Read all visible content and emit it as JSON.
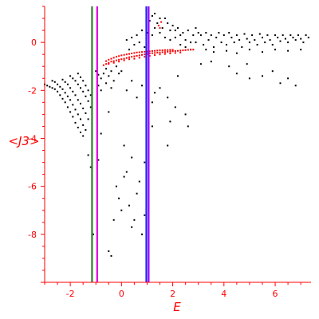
{
  "chart_data": {
    "type": "scatter",
    "xlabel": "E",
    "ylabel": "<J3>",
    "xlim": [
      -3,
      7.4
    ],
    "ylim": [
      -10,
      1.5
    ],
    "x_ticks": [
      -2,
      0,
      2,
      4,
      6
    ],
    "y_ticks": [
      0,
      -2,
      -4,
      -6,
      -8
    ],
    "x_tick_labels": [
      "-2",
      "0",
      "2",
      "4",
      "6"
    ],
    "y_tick_labels": [
      "0",
      "-2",
      "-4",
      "-6",
      "-8"
    ],
    "grid": false,
    "colors": {
      "axes": "#ff0000",
      "black_points": "#000000",
      "red_points": "#ff0000",
      "line_green": "#2e7d32",
      "line_magenta": "#e000e0",
      "line_blue": "#2020ff",
      "line_purple": "#9900ff"
    },
    "vertical_lines": [
      {
        "x": -1.15,
        "color": "#2e7d32"
      },
      {
        "x": -0.95,
        "color": "#e000e0"
      },
      {
        "x": 0.97,
        "color": "#2020ff"
      },
      {
        "x": 1.06,
        "color": "#9900ff"
      }
    ],
    "series": [
      {
        "color": "#000000",
        "points": [
          [
            -3.0,
            -1.75
          ],
          [
            -2.9,
            -1.8
          ],
          [
            -2.8,
            -1.85
          ],
          [
            -2.7,
            -1.9
          ],
          [
            -2.6,
            -1.95
          ],
          [
            -2.5,
            -2.05
          ],
          [
            -2.4,
            -2.2
          ],
          [
            -2.3,
            -2.35
          ],
          [
            -2.2,
            -2.5
          ],
          [
            -2.1,
            -2.7
          ],
          [
            -2.0,
            -2.9
          ],
          [
            -1.9,
            -3.1
          ],
          [
            -1.8,
            -3.35
          ],
          [
            -1.7,
            -3.55
          ],
          [
            -1.6,
            -3.75
          ],
          [
            -1.5,
            -3.9
          ],
          [
            -2.7,
            -1.6
          ],
          [
            -2.6,
            -1.65
          ],
          [
            -2.5,
            -1.75
          ],
          [
            -2.4,
            -1.85
          ],
          [
            -2.3,
            -1.95
          ],
          [
            -2.2,
            -2.1
          ],
          [
            -2.1,
            -2.25
          ],
          [
            -2.0,
            -2.4
          ],
          [
            -1.9,
            -2.6
          ],
          [
            -1.8,
            -2.8
          ],
          [
            -1.7,
            -3.0
          ],
          [
            -1.6,
            -3.2
          ],
          [
            -1.5,
            -3.45
          ],
          [
            -1.4,
            -3.65
          ],
          [
            -2.3,
            -1.55
          ],
          [
            -2.2,
            -1.65
          ],
          [
            -2.1,
            -1.75
          ],
          [
            -2.0,
            -1.9
          ],
          [
            -1.9,
            -2.05
          ],
          [
            -1.8,
            -2.2
          ],
          [
            -1.7,
            -2.4
          ],
          [
            -1.6,
            -2.55
          ],
          [
            -1.5,
            -2.75
          ],
          [
            -1.4,
            -2.95
          ],
          [
            -1.3,
            -3.2
          ],
          [
            -2.0,
            -1.4
          ],
          [
            -1.9,
            -1.5
          ],
          [
            -1.8,
            -1.6
          ],
          [
            -1.7,
            -1.75
          ],
          [
            -1.6,
            -1.9
          ],
          [
            -1.5,
            -2.05
          ],
          [
            -1.4,
            -2.25
          ],
          [
            -1.3,
            -2.45
          ],
          [
            -1.2,
            -2.7
          ],
          [
            -1.7,
            -1.3
          ],
          [
            -1.6,
            -1.45
          ],
          [
            -1.5,
            -1.6
          ],
          [
            -1.4,
            -1.8
          ],
          [
            -1.3,
            -2.0
          ],
          [
            -1.2,
            -2.2
          ],
          [
            -1.0,
            -1.2
          ],
          [
            -0.9,
            -1.35
          ],
          [
            -0.8,
            -1.5
          ],
          [
            -0.7,
            -1.3
          ],
          [
            -0.6,
            -1.1
          ],
          [
            -0.5,
            -1.4
          ],
          [
            -0.4,
            -1.2
          ],
          [
            -0.3,
            -1.6
          ],
          [
            -0.2,
            -1.0
          ],
          [
            -0.1,
            -1.3
          ],
          [
            0.0,
            -1.2
          ],
          [
            -0.9,
            -1.8
          ],
          [
            -0.8,
            -2.0
          ],
          [
            -0.6,
            -1.7
          ],
          [
            -0.4,
            -1.9
          ],
          [
            0.2,
            0.1
          ],
          [
            0.3,
            -0.3
          ],
          [
            0.4,
            0.2
          ],
          [
            0.5,
            -0.1
          ],
          [
            0.6,
            0.3
          ],
          [
            0.7,
            0.0
          ],
          [
            0.8,
            0.5
          ],
          [
            0.9,
            -0.2
          ],
          [
            1.0,
            0.4
          ],
          [
            1.1,
            0.9
          ],
          [
            1.2,
            1.1
          ],
          [
            1.3,
            1.2
          ],
          [
            1.4,
            0.8
          ],
          [
            1.5,
            1.0
          ],
          [
            1.6,
            0.6
          ],
          [
            1.7,
            1.0
          ],
          [
            1.8,
            0.8
          ],
          [
            1.9,
            0.5
          ],
          [
            2.0,
            0.7
          ],
          [
            2.1,
            0.2
          ],
          [
            2.2,
            0.6
          ],
          [
            2.3,
            -0.1
          ],
          [
            2.4,
            0.4
          ],
          [
            2.5,
            0.1
          ],
          [
            2.6,
            0.5
          ],
          [
            2.7,
            -0.3
          ],
          [
            2.8,
            0.3
          ],
          [
            2.9,
            0.0
          ],
          [
            3.0,
            0.4
          ],
          [
            1.2,
            0.3
          ],
          [
            1.3,
            0.6
          ],
          [
            1.5,
            0.4
          ],
          [
            1.7,
            0.2
          ],
          [
            1.9,
            0.1
          ],
          [
            2.1,
            0.5
          ],
          [
            2.3,
            0.3
          ],
          [
            2.5,
            -0.2
          ],
          [
            2.7,
            0.0
          ],
          [
            2.9,
            0.6
          ],
          [
            3.1,
            0.3
          ],
          [
            3.2,
            -0.1
          ],
          [
            3.3,
            0.4
          ],
          [
            3.4,
            0.1
          ],
          [
            3.5,
            0.3
          ],
          [
            3.6,
            -0.2
          ],
          [
            3.7,
            0.2
          ],
          [
            3.8,
            0.4
          ],
          [
            3.9,
            0.0
          ],
          [
            4.0,
            0.3
          ],
          [
            4.1,
            -0.1
          ],
          [
            4.2,
            0.4
          ],
          [
            4.3,
            0.2
          ],
          [
            4.4,
            0.0
          ],
          [
            4.5,
            0.3
          ],
          [
            4.6,
            0.1
          ],
          [
            4.7,
            -0.2
          ],
          [
            4.8,
            0.35
          ],
          [
            4.9,
            0.15
          ],
          [
            5.0,
            0.0
          ],
          [
            5.1,
            0.3
          ],
          [
            5.2,
            0.1
          ],
          [
            5.3,
            -0.1
          ],
          [
            5.4,
            0.35
          ],
          [
            5.5,
            0.2
          ],
          [
            5.6,
            0.0
          ],
          [
            5.7,
            0.3
          ],
          [
            5.8,
            0.1
          ],
          [
            5.9,
            -0.1
          ],
          [
            6.0,
            0.3
          ],
          [
            6.1,
            0.2
          ],
          [
            6.2,
            0.05
          ],
          [
            6.3,
            0.3
          ],
          [
            6.4,
            0.15
          ],
          [
            6.5,
            0.0
          ],
          [
            6.6,
            0.3
          ],
          [
            6.7,
            0.2
          ],
          [
            6.8,
            0.1
          ],
          [
            6.9,
            0.3
          ],
          [
            7.0,
            0.15
          ],
          [
            7.1,
            0.0
          ],
          [
            7.2,
            0.3
          ],
          [
            7.3,
            0.2
          ],
          [
            3.3,
            -0.3
          ],
          [
            3.6,
            -0.4
          ],
          [
            4.1,
            -0.35
          ],
          [
            4.5,
            -0.45
          ],
          [
            5.0,
            -0.3
          ],
          [
            5.5,
            -0.4
          ],
          [
            6.0,
            -0.3
          ],
          [
            6.5,
            -0.35
          ],
          [
            7.0,
            -0.3
          ],
          [
            4.5,
            -1.3
          ],
          [
            5.0,
            -1.5
          ],
          [
            5.5,
            -1.4
          ],
          [
            6.2,
            -1.7
          ],
          [
            6.8,
            -1.8
          ],
          [
            4.9,
            -0.9
          ],
          [
            5.9,
            -1.2
          ],
          [
            4.2,
            -1.0
          ],
          [
            3.5,
            -0.8
          ],
          [
            6.5,
            -1.5
          ],
          [
            3.1,
            -0.9
          ],
          [
            2.2,
            -1.4
          ],
          [
            0.2,
            -2.0
          ],
          [
            0.4,
            -1.6
          ],
          [
            0.6,
            -2.3
          ],
          [
            0.8,
            -1.8
          ],
          [
            1.2,
            -2.5
          ],
          [
            1.5,
            -1.9
          ],
          [
            1.8,
            -2.3
          ],
          [
            2.1,
            -2.7
          ],
          [
            2.5,
            -3.0
          ],
          [
            2.6,
            -3.5
          ],
          [
            1.9,
            -3.3
          ],
          [
            1.3,
            -2.1
          ],
          [
            -0.9,
            -4.9
          ],
          [
            -0.8,
            -3.8
          ],
          [
            -0.5,
            -2.9
          ],
          [
            0.1,
            -4.3
          ],
          [
            0.4,
            -4.8
          ],
          [
            0.9,
            -5.0
          ],
          [
            1.2,
            -3.5
          ],
          [
            1.8,
            -4.3
          ],
          [
            -1.3,
            -4.7
          ],
          [
            -1.2,
            -5.2
          ],
          [
            -1.1,
            -8.0
          ],
          [
            -0.5,
            -8.7
          ],
          [
            -0.4,
            -8.9
          ],
          [
            -0.3,
            -7.4
          ],
          [
            0.1,
            -5.6
          ],
          [
            0.2,
            -5.4
          ],
          [
            0.3,
            -6.8
          ],
          [
            0.5,
            -7.4
          ],
          [
            0.6,
            -6.3
          ],
          [
            0.7,
            -5.8
          ],
          [
            0.8,
            -8.0
          ],
          [
            0.9,
            -7.2
          ],
          [
            -0.1,
            -6.5
          ],
          [
            -0.2,
            -6.0
          ],
          [
            0.0,
            -7.0
          ],
          [
            0.4,
            -7.7
          ]
        ]
      },
      {
        "color": "#ff0000",
        "points": [
          [
            -0.7,
            -0.95
          ],
          [
            -0.6,
            -0.9
          ],
          [
            -0.5,
            -0.85
          ],
          [
            -0.4,
            -0.8
          ],
          [
            -0.3,
            -0.78
          ],
          [
            -0.2,
            -0.75
          ],
          [
            -0.1,
            -0.72
          ],
          [
            0.0,
            -0.7
          ],
          [
            0.1,
            -0.68
          ],
          [
            0.2,
            -0.65
          ],
          [
            0.3,
            -0.62
          ],
          [
            0.4,
            -0.6
          ],
          [
            0.5,
            -0.58
          ],
          [
            0.6,
            -0.56
          ],
          [
            0.7,
            -0.54
          ],
          [
            0.8,
            -0.52
          ],
          [
            0.9,
            -0.5
          ],
          [
            1.0,
            -0.48
          ],
          [
            1.1,
            -0.46
          ],
          [
            1.2,
            -0.45
          ],
          [
            1.3,
            -0.44
          ],
          [
            1.4,
            -0.43
          ],
          [
            1.5,
            -0.42
          ],
          [
            1.6,
            -0.41
          ],
          [
            1.7,
            -0.4
          ],
          [
            1.8,
            -0.39
          ],
          [
            1.9,
            -0.38
          ],
          [
            2.0,
            -0.37
          ],
          [
            2.1,
            -0.36
          ],
          [
            2.2,
            -0.35
          ],
          [
            2.3,
            -0.34
          ],
          [
            2.4,
            -0.33
          ],
          [
            2.5,
            -0.32
          ],
          [
            2.6,
            -0.31
          ],
          [
            2.7,
            -0.3
          ],
          [
            2.8,
            -0.3
          ],
          [
            -0.6,
            -0.78
          ],
          [
            -0.5,
            -0.72
          ],
          [
            -0.4,
            -0.68
          ],
          [
            -0.3,
            -0.64
          ],
          [
            -0.2,
            -0.6
          ],
          [
            -0.1,
            -0.57
          ],
          [
            0.0,
            -0.54
          ],
          [
            0.1,
            -0.52
          ],
          [
            0.2,
            -0.5
          ],
          [
            0.3,
            -0.48
          ],
          [
            0.4,
            -0.46
          ],
          [
            0.5,
            -0.44
          ],
          [
            0.6,
            -0.42
          ],
          [
            0.7,
            -0.41
          ],
          [
            0.8,
            -0.4
          ],
          [
            0.9,
            -0.39
          ],
          [
            1.0,
            -0.38
          ],
          [
            1.1,
            -0.37
          ],
          [
            1.2,
            -0.36
          ],
          [
            1.3,
            -0.35
          ],
          [
            1.4,
            -0.34
          ],
          [
            1.5,
            -0.33
          ],
          [
            1.6,
            -0.33
          ],
          [
            1.7,
            -0.32
          ],
          [
            1.8,
            -0.32
          ],
          [
            1.9,
            -0.31
          ],
          [
            2.0,
            -0.31
          ],
          [
            -0.5,
            -0.9
          ],
          [
            -0.3,
            -0.85
          ],
          [
            -0.1,
            -0.8
          ],
          [
            0.1,
            -0.75
          ],
          [
            0.3,
            -0.7
          ],
          [
            0.5,
            -0.68
          ],
          [
            0.7,
            -0.64
          ],
          [
            0.9,
            -0.6
          ],
          [
            1.1,
            -0.56
          ],
          [
            1.3,
            -0.53
          ],
          [
            1.5,
            -0.5
          ],
          [
            1.7,
            -0.48
          ],
          [
            1.9,
            -0.46
          ],
          [
            2.1,
            -0.44
          ],
          [
            2.3,
            -0.42
          ],
          [
            1.45,
            0.7
          ],
          [
            1.55,
            0.85
          ],
          [
            1.5,
            0.6
          ]
        ]
      }
    ]
  }
}
